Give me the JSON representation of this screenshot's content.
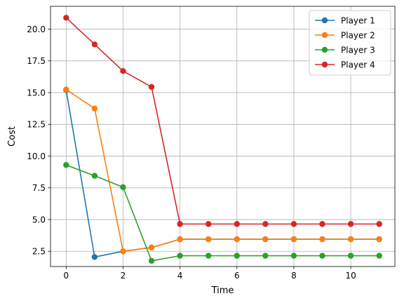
{
  "chart_data": {
    "type": "line",
    "title": "",
    "xlabel": "Time",
    "ylabel": "Cost",
    "xlim": [
      -0.55,
      11.55
    ],
    "ylim": [
      1.3,
      21.8
    ],
    "xticks": [
      0,
      2,
      4,
      6,
      8,
      10
    ],
    "xtick_labels": [
      "0",
      "2",
      "4",
      "6",
      "8",
      "10"
    ],
    "yticks": [
      2.5,
      5.0,
      7.5,
      10.0,
      12.5,
      15.0,
      17.5,
      20.0
    ],
    "ytick_labels": [
      "2.5",
      "5.0",
      "7.5",
      "10.0",
      "12.5",
      "15.0",
      "17.5",
      "20.0"
    ],
    "grid": true,
    "legend_position": "top-right",
    "series": [
      {
        "name": "Player 1",
        "color": "#1f77b4",
        "x": [
          0,
          1,
          2,
          3,
          4,
          5,
          6,
          7,
          8,
          9,
          10,
          11
        ],
        "y": [
          15.2,
          2.05,
          2.5,
          2.8,
          3.45,
          3.45,
          3.45,
          3.45,
          3.45,
          3.45,
          3.45,
          3.45
        ]
      },
      {
        "name": "Player 2",
        "color": "#ff7f0e",
        "x": [
          0,
          1,
          2,
          3,
          4,
          5,
          6,
          7,
          8,
          9,
          10,
          11
        ],
        "y": [
          15.25,
          13.75,
          2.5,
          2.8,
          3.45,
          3.45,
          3.45,
          3.45,
          3.45,
          3.45,
          3.45,
          3.45
        ]
      },
      {
        "name": "Player 3",
        "color": "#2ca02c",
        "x": [
          0,
          1,
          2,
          3,
          4,
          5,
          6,
          7,
          8,
          9,
          10,
          11
        ],
        "y": [
          9.3,
          8.45,
          7.55,
          1.75,
          2.15,
          2.15,
          2.15,
          2.15,
          2.15,
          2.15,
          2.15,
          2.15
        ]
      },
      {
        "name": "Player 4",
        "color": "#d62728",
        "x": [
          0,
          1,
          2,
          3,
          4,
          5,
          6,
          7,
          8,
          9,
          10,
          11
        ],
        "y": [
          20.9,
          18.8,
          16.7,
          15.45,
          4.65,
          4.65,
          4.65,
          4.65,
          4.65,
          4.65,
          4.65,
          4.65
        ]
      }
    ]
  }
}
